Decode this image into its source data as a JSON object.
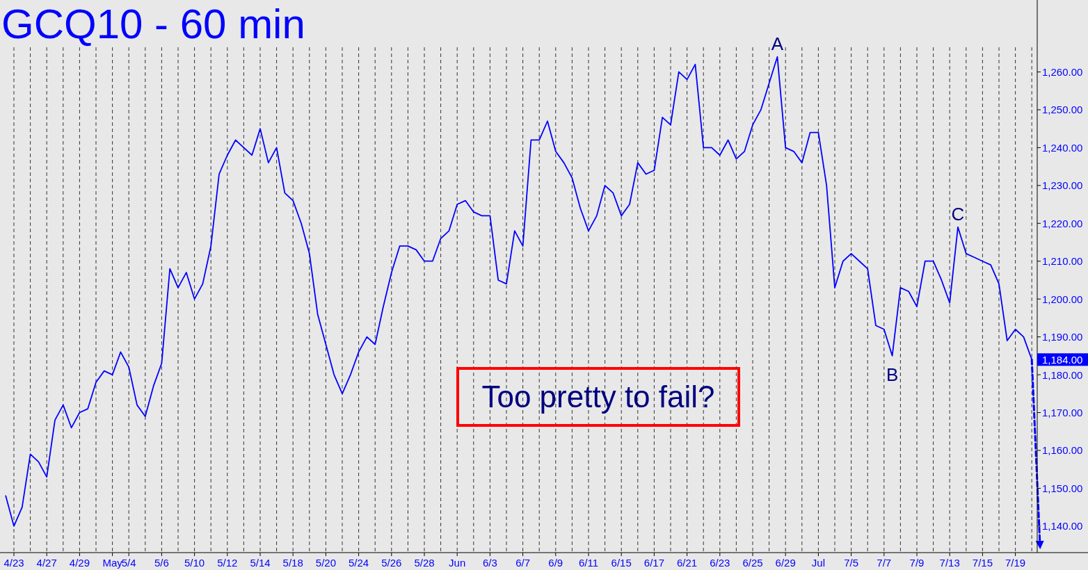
{
  "chart_data": {
    "type": "line",
    "title": "GCQ10 - 60 min",
    "categories": [
      null,
      "4/23",
      null,
      null,
      null,
      "4/27",
      null,
      null,
      null,
      "4/29",
      null,
      null,
      null,
      "May",
      null,
      "5/4",
      null,
      null,
      null,
      "5/6",
      null,
      null,
      null,
      "5/10",
      null,
      null,
      null,
      "5/12",
      null,
      null,
      null,
      "5/14",
      null,
      null,
      null,
      "5/18",
      null,
      null,
      null,
      "5/20",
      null,
      null,
      null,
      "5/24",
      null,
      null,
      null,
      "5/26",
      null,
      null,
      null,
      "5/28",
      null,
      null,
      null,
      "Jun",
      null,
      null,
      null,
      "6/3",
      null,
      null,
      null,
      "6/7",
      null,
      null,
      null,
      "6/9",
      null,
      null,
      null,
      "6/11",
      null,
      null,
      null,
      "6/15",
      null,
      null,
      null,
      "6/17",
      null,
      null,
      null,
      "6/21",
      null,
      null,
      null,
      "6/23",
      null,
      null,
      null,
      "6/25",
      null,
      null,
      null,
      "6/29",
      null,
      null,
      null,
      "Jul",
      null,
      null,
      null,
      "7/5",
      null,
      null,
      null,
      "7/7",
      null,
      null,
      null,
      "7/9",
      null,
      null,
      null,
      "7/13",
      null,
      null,
      null,
      "7/15",
      null,
      null,
      null,
      "7/19",
      null,
      null,
      null
    ],
    "series": [
      {
        "color": "#0000ff",
        "values": [
          1148,
          1140,
          1145,
          1159,
          1157,
          1153,
          1168,
          1172,
          1166,
          1170,
          1171,
          1178,
          1181,
          1180,
          1186,
          1182,
          1172,
          1169,
          1177,
          1183,
          1208,
          1203,
          1207,
          1200,
          1204,
          1214,
          1233,
          1238,
          1242,
          1240,
          1238,
          1245,
          1236,
          1240,
          1228,
          1226,
          1220,
          1212,
          1196,
          1188,
          1180,
          1175,
          1180,
          1186,
          1190,
          1188,
          1198,
          1207,
          1214,
          1214,
          1213,
          1210,
          1210,
          1216,
          1218,
          1225,
          1226,
          1223,
          1222,
          1222,
          1205,
          1204,
          1218,
          1214,
          1242,
          1242,
          1247,
          1239,
          1236,
          1232,
          1224,
          1218,
          1222,
          1230,
          1228,
          1222,
          1225,
          1236,
          1233,
          1234,
          1248,
          1246,
          1260,
          1258,
          1262,
          1240,
          1240,
          1238,
          1242,
          1237,
          1239,
          1246,
          1250,
          1257,
          1264,
          1240,
          1239,
          1236,
          1244,
          1244,
          1230,
          1203,
          1210,
          1212,
          1210,
          1208,
          1193,
          1192,
          1185,
          1203,
          1202,
          1198,
          1210,
          1210,
          1205,
          1199,
          1219,
          1212,
          1211,
          1210,
          1209,
          1204,
          1189,
          1192,
          1190,
          1184,
          null
        ]
      },
      {
        "type": "line",
        "line_style": "dashed",
        "color": "#0000ff",
        "values": [
          null,
          null,
          null,
          null,
          null,
          null,
          null,
          null,
          null,
          null,
          null,
          null,
          null,
          null,
          null,
          null,
          null,
          null,
          null,
          null,
          null,
          null,
          null,
          null,
          null,
          null,
          null,
          null,
          null,
          null,
          null,
          null,
          null,
          null,
          null,
          null,
          null,
          null,
          null,
          null,
          null,
          null,
          null,
          null,
          null,
          null,
          null,
          null,
          null,
          null,
          null,
          null,
          null,
          null,
          null,
          null,
          null,
          null,
          null,
          null,
          null,
          null,
          null,
          null,
          null,
          null,
          null,
          null,
          null,
          null,
          null,
          null,
          null,
          null,
          null,
          null,
          null,
          null,
          null,
          null,
          null,
          null,
          null,
          null,
          null,
          null,
          null,
          null,
          null,
          null,
          null,
          null,
          null,
          null,
          null,
          null,
          null,
          null,
          null,
          null,
          null,
          null,
          null,
          null,
          null,
          null,
          null,
          null,
          null,
          null,
          null,
          null,
          null,
          null,
          null,
          null,
          null,
          null,
          null,
          null,
          null,
          null,
          null,
          null,
          null,
          1184,
          1135
        ]
      }
    ],
    "ylim": [
      1133,
      1279
    ],
    "yticks": [
      {
        "value": 1140,
        "label": "1,140.00"
      },
      {
        "value": 1150,
        "label": "1,150.00"
      },
      {
        "value": 1160,
        "label": "1,160.00"
      },
      {
        "value": 1170,
        "label": "1,170.00"
      },
      {
        "value": 1180,
        "label": "1,180.00"
      },
      {
        "value": 1190,
        "label": "1,190.00"
      },
      {
        "value": 1200,
        "label": "1,200.00"
      },
      {
        "value": 1210,
        "label": "1,210.00"
      },
      {
        "value": 1220,
        "label": "1,220.00"
      },
      {
        "value": 1230,
        "label": "1,230.00"
      },
      {
        "value": 1240,
        "label": "1,240.00"
      },
      {
        "value": 1250,
        "label": "1,250.00"
      },
      {
        "value": 1260,
        "label": "1,260.00"
      }
    ],
    "annotations": [
      "1,184.00",
      {
        "text": "A",
        "y": 1264
      },
      {
        "text": "B",
        "y": 1185
      },
      {
        "text": "C",
        "y": 1219
      },
      "Too pretty to fail?"
    ],
    "grid": "x",
    "marker": "none"
  }
}
